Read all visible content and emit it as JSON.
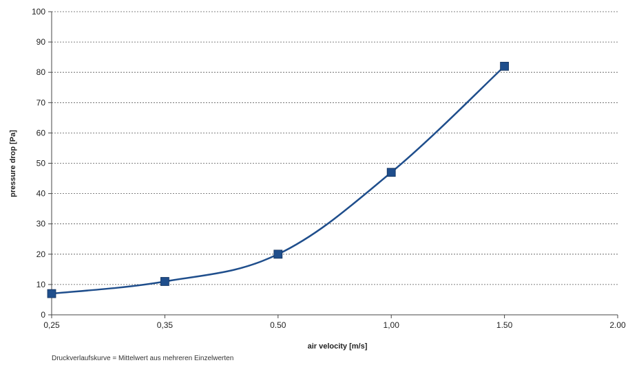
{
  "chart_data": {
    "type": "line",
    "title": "",
    "xlabel": "air velocity [m/s]",
    "ylabel": "pressure drop [Pa]",
    "categories": [
      "0,25",
      "0,35",
      "0.50",
      "1,00",
      "1.50",
      "2.00"
    ],
    "ylim": [
      0,
      100
    ],
    "yticks": [
      0,
      10,
      20,
      30,
      40,
      50,
      60,
      70,
      80,
      90,
      100
    ],
    "grid": true,
    "legend": "none",
    "series": [
      {
        "points": [
          {
            "x": "0,25",
            "y": 7
          },
          {
            "x": "0,35",
            "y": 11
          },
          {
            "x": "0.50",
            "y": 20
          },
          {
            "x": "1,00",
            "y": 47
          },
          {
            "x": "1.50",
            "y": 82
          }
        ],
        "color": "#1f4e8c",
        "marker": "square"
      }
    ]
  },
  "footnote": "Druckverlaufskurve = Mittelwert aus mehreren Einzelwerten"
}
